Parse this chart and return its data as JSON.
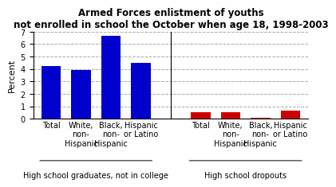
{
  "title_line1": "Armed Forces enlistment of youths",
  "title_line2": "not enrolled in school the October when age 18, 1998-2003",
  "ylabel": "Percent",
  "ylim": [
    0,
    7
  ],
  "yticks": [
    0,
    1,
    2,
    3,
    4,
    5,
    6,
    7
  ],
  "group1_label": "High school graduates, not in college",
  "group2_label": "High school dropouts",
  "categories": [
    "Total",
    "White,\nnon-\nHispanic",
    "Black,\nnon-\nHispanic",
    "Hispanic\nor Latino",
    "Total",
    "White,\nnon-\nHispanic",
    "Black,\nnon-\nHispanic",
    "Hispanic\nor Latino"
  ],
  "values": [
    4.25,
    3.9,
    6.65,
    4.5,
    0.5,
    0.5,
    0.1,
    0.65
  ],
  "bar_colors": [
    "#0000cc",
    "#0000cc",
    "#0000cc",
    "#0000cc",
    "#cc0000",
    "#cc0000",
    "#cc0000",
    "#cc0000"
  ],
  "background_color": "#ffffff",
  "grid_color": "#aaaaaa",
  "title_fontsize": 8.5,
  "axis_label_fontsize": 8,
  "tick_fontsize": 7,
  "group_label_fontsize": 7,
  "divider_x": 4.0,
  "xlim": [
    -0.6,
    8.6
  ],
  "x_positions": [
    0,
    1,
    2,
    3,
    5,
    6,
    7,
    8
  ],
  "bar_width": 0.65
}
